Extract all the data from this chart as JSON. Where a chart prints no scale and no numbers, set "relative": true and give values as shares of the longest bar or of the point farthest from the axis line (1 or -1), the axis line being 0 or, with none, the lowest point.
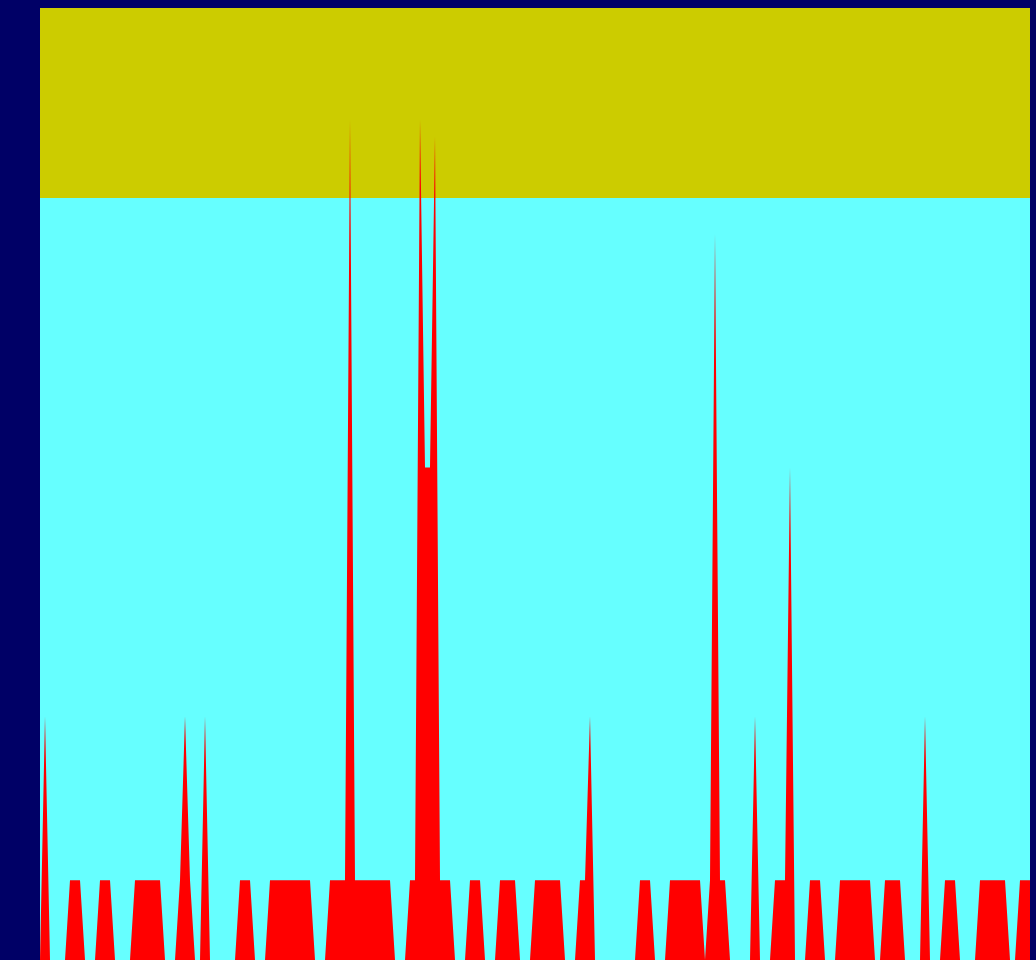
{
  "chart_data": {
    "type": "area",
    "relative": true,
    "categories": [
      null,
      null,
      null,
      null,
      null,
      null,
      null,
      null,
      null,
      null,
      null,
      null,
      null,
      null,
      null,
      null,
      null,
      null,
      null,
      null,
      null,
      null,
      null,
      null,
      null,
      null,
      null,
      null,
      null,
      null,
      null,
      null,
      null,
      null,
      null,
      null,
      null,
      null,
      null,
      null,
      null,
      null,
      null,
      null,
      null,
      null,
      null,
      null,
      null,
      null,
      null,
      null,
      null,
      null,
      null,
      null,
      null,
      null,
      null,
      null,
      null,
      null,
      null,
      null,
      null,
      null,
      null,
      null,
      null,
      null,
      null,
      null,
      null,
      null,
      null,
      null,
      null,
      null,
      null,
      null,
      null,
      null,
      null,
      null,
      null,
      null,
      null,
      null,
      null,
      null,
      null,
      null,
      null,
      null,
      null,
      null,
      null,
      null,
      null,
      null,
      null,
      null,
      null,
      null,
      null,
      null,
      null,
      null,
      null,
      null,
      null,
      null,
      null,
      null,
      null,
      null,
      null,
      null,
      null,
      null,
      null,
      null,
      null,
      null,
      null,
      null,
      null,
      null,
      null,
      null,
      null,
      null,
      null,
      null,
      null,
      null,
      null,
      null,
      null,
      null,
      null,
      null,
      null,
      null,
      null,
      null,
      null,
      null,
      null,
      null,
      null,
      null,
      null,
      null,
      null,
      null,
      null,
      null,
      null,
      null,
      null,
      null,
      null,
      null,
      null,
      null,
      null,
      null,
      null,
      null,
      null,
      null,
      null,
      null,
      null,
      null,
      null,
      null,
      null,
      null,
      null,
      null,
      null,
      null,
      null,
      null,
      null,
      null,
      null,
      null,
      null,
      null,
      null,
      null,
      null,
      null,
      null,
      null,
      null
    ],
    "series": [
      {
        "color": "#ff0000",
        "values": [
          0,
          0.29,
          0,
          0,
          0,
          0,
          0.095,
          0.095,
          0.095,
          0,
          0,
          0,
          0.095,
          0.095,
          0.095,
          0,
          0,
          0,
          0,
          0.095,
          0.095,
          0.095,
          0.095,
          0.095,
          0.095,
          0,
          0,
          0,
          0.095,
          0.29,
          0.095,
          0,
          0,
          0.29,
          0,
          0,
          0,
          0,
          0,
          0,
          0.095,
          0.095,
          0.095,
          0,
          0,
          0,
          0.095,
          0.095,
          0.095,
          0.095,
          0.095,
          0.095,
          0.095,
          0.095,
          0.095,
          0,
          0,
          0,
          0.095,
          0.095,
          0.095,
          0.095,
          1,
          0.095,
          0.095,
          0.095,
          0.095,
          0.095,
          0.095,
          0.095,
          0.095,
          0,
          0,
          0,
          0.095,
          0.095,
          1,
          0.586,
          0.586,
          0.98,
          0.095,
          0.095,
          0.095,
          0,
          0,
          0,
          0.095,
          0.095,
          0.095,
          0,
          0,
          0,
          0.095,
          0.095,
          0.095,
          0.095,
          0,
          0,
          0,
          0.095,
          0.095,
          0.095,
          0.095,
          0.095,
          0.095,
          0,
          0,
          0,
          0.095,
          0.095,
          0.29,
          0,
          0,
          0,
          0,
          0,
          0,
          0,
          0,
          0,
          0.095,
          0.095,
          0.095,
          0,
          0,
          0,
          0.095,
          0.095,
          0.095,
          0.095,
          0.095,
          0.095,
          0.095,
          0,
          0.095,
          0.864,
          0.095,
          0.095,
          0,
          0,
          0,
          0,
          0,
          0.29,
          0,
          0,
          0,
          0.095,
          0.095,
          0.095,
          0.586,
          0,
          0,
          0,
          0.095,
          0.095,
          0.095,
          0,
          0,
          0,
          0.095,
          0.095,
          0.095,
          0.095,
          0.095,
          0.095,
          0.095,
          0,
          0,
          0.095,
          0.095,
          0.095,
          0.095,
          0,
          0,
          0,
          0,
          0.29,
          0,
          0,
          0,
          0.095,
          0.095,
          0.095,
          0,
          0,
          0,
          0,
          0.095,
          0.095,
          0.095,
          0.095,
          0.095,
          0.095,
          0,
          0,
          0.095,
          0.095,
          0.095
        ]
      }
    ],
    "bands": [
      {
        "axis": "y",
        "from": 0.907,
        "to": 1.133,
        "color": "#cccc00"
      }
    ]
  }
}
